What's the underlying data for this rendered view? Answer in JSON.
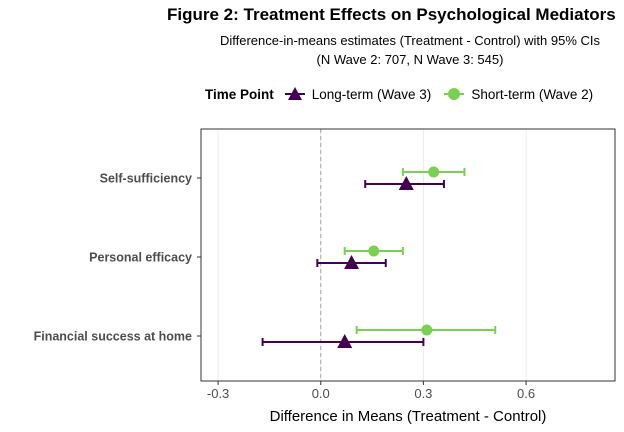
{
  "chart_data": {
    "type": "forest",
    "title": "Figure 2: Treatment Effects on Psychological Mediators",
    "subtitle_lines": [
      "Difference-in-means estimates (Treatment - Control) with 95% CIs",
      "(N Wave 2: 707, N Wave 3: 545)"
    ],
    "legend_title": "Time Point",
    "legend_position": "top",
    "xlabel": "Difference in Means (Treatment - Control)",
    "xlim": [
      -0.35,
      0.86
    ],
    "xticks": [
      -0.3,
      0.0,
      0.3,
      0.6
    ],
    "xtick_labels": [
      "-0.3",
      "0.0",
      "0.3",
      "0.6"
    ],
    "reference_line": 0,
    "categories": [
      "Self-sufficiency",
      "Personal efficacy",
      "Financial success at home"
    ],
    "series": [
      {
        "name": "Long-term (Wave 3)",
        "color": "#440154",
        "marker": "triangle",
        "estimates": [
          0.25,
          0.09,
          0.07
        ],
        "ci_low": [
          0.13,
          -0.01,
          -0.17
        ],
        "ci_high": [
          0.36,
          0.19,
          0.3
        ]
      },
      {
        "name": "Short-term (Wave 2)",
        "color": "#7AD151",
        "marker": "circle",
        "estimates": [
          0.33,
          0.155,
          0.31
        ],
        "ci_low": [
          0.24,
          0.07,
          0.105
        ],
        "ci_high": [
          0.42,
          0.24,
          0.51
        ]
      }
    ]
  }
}
